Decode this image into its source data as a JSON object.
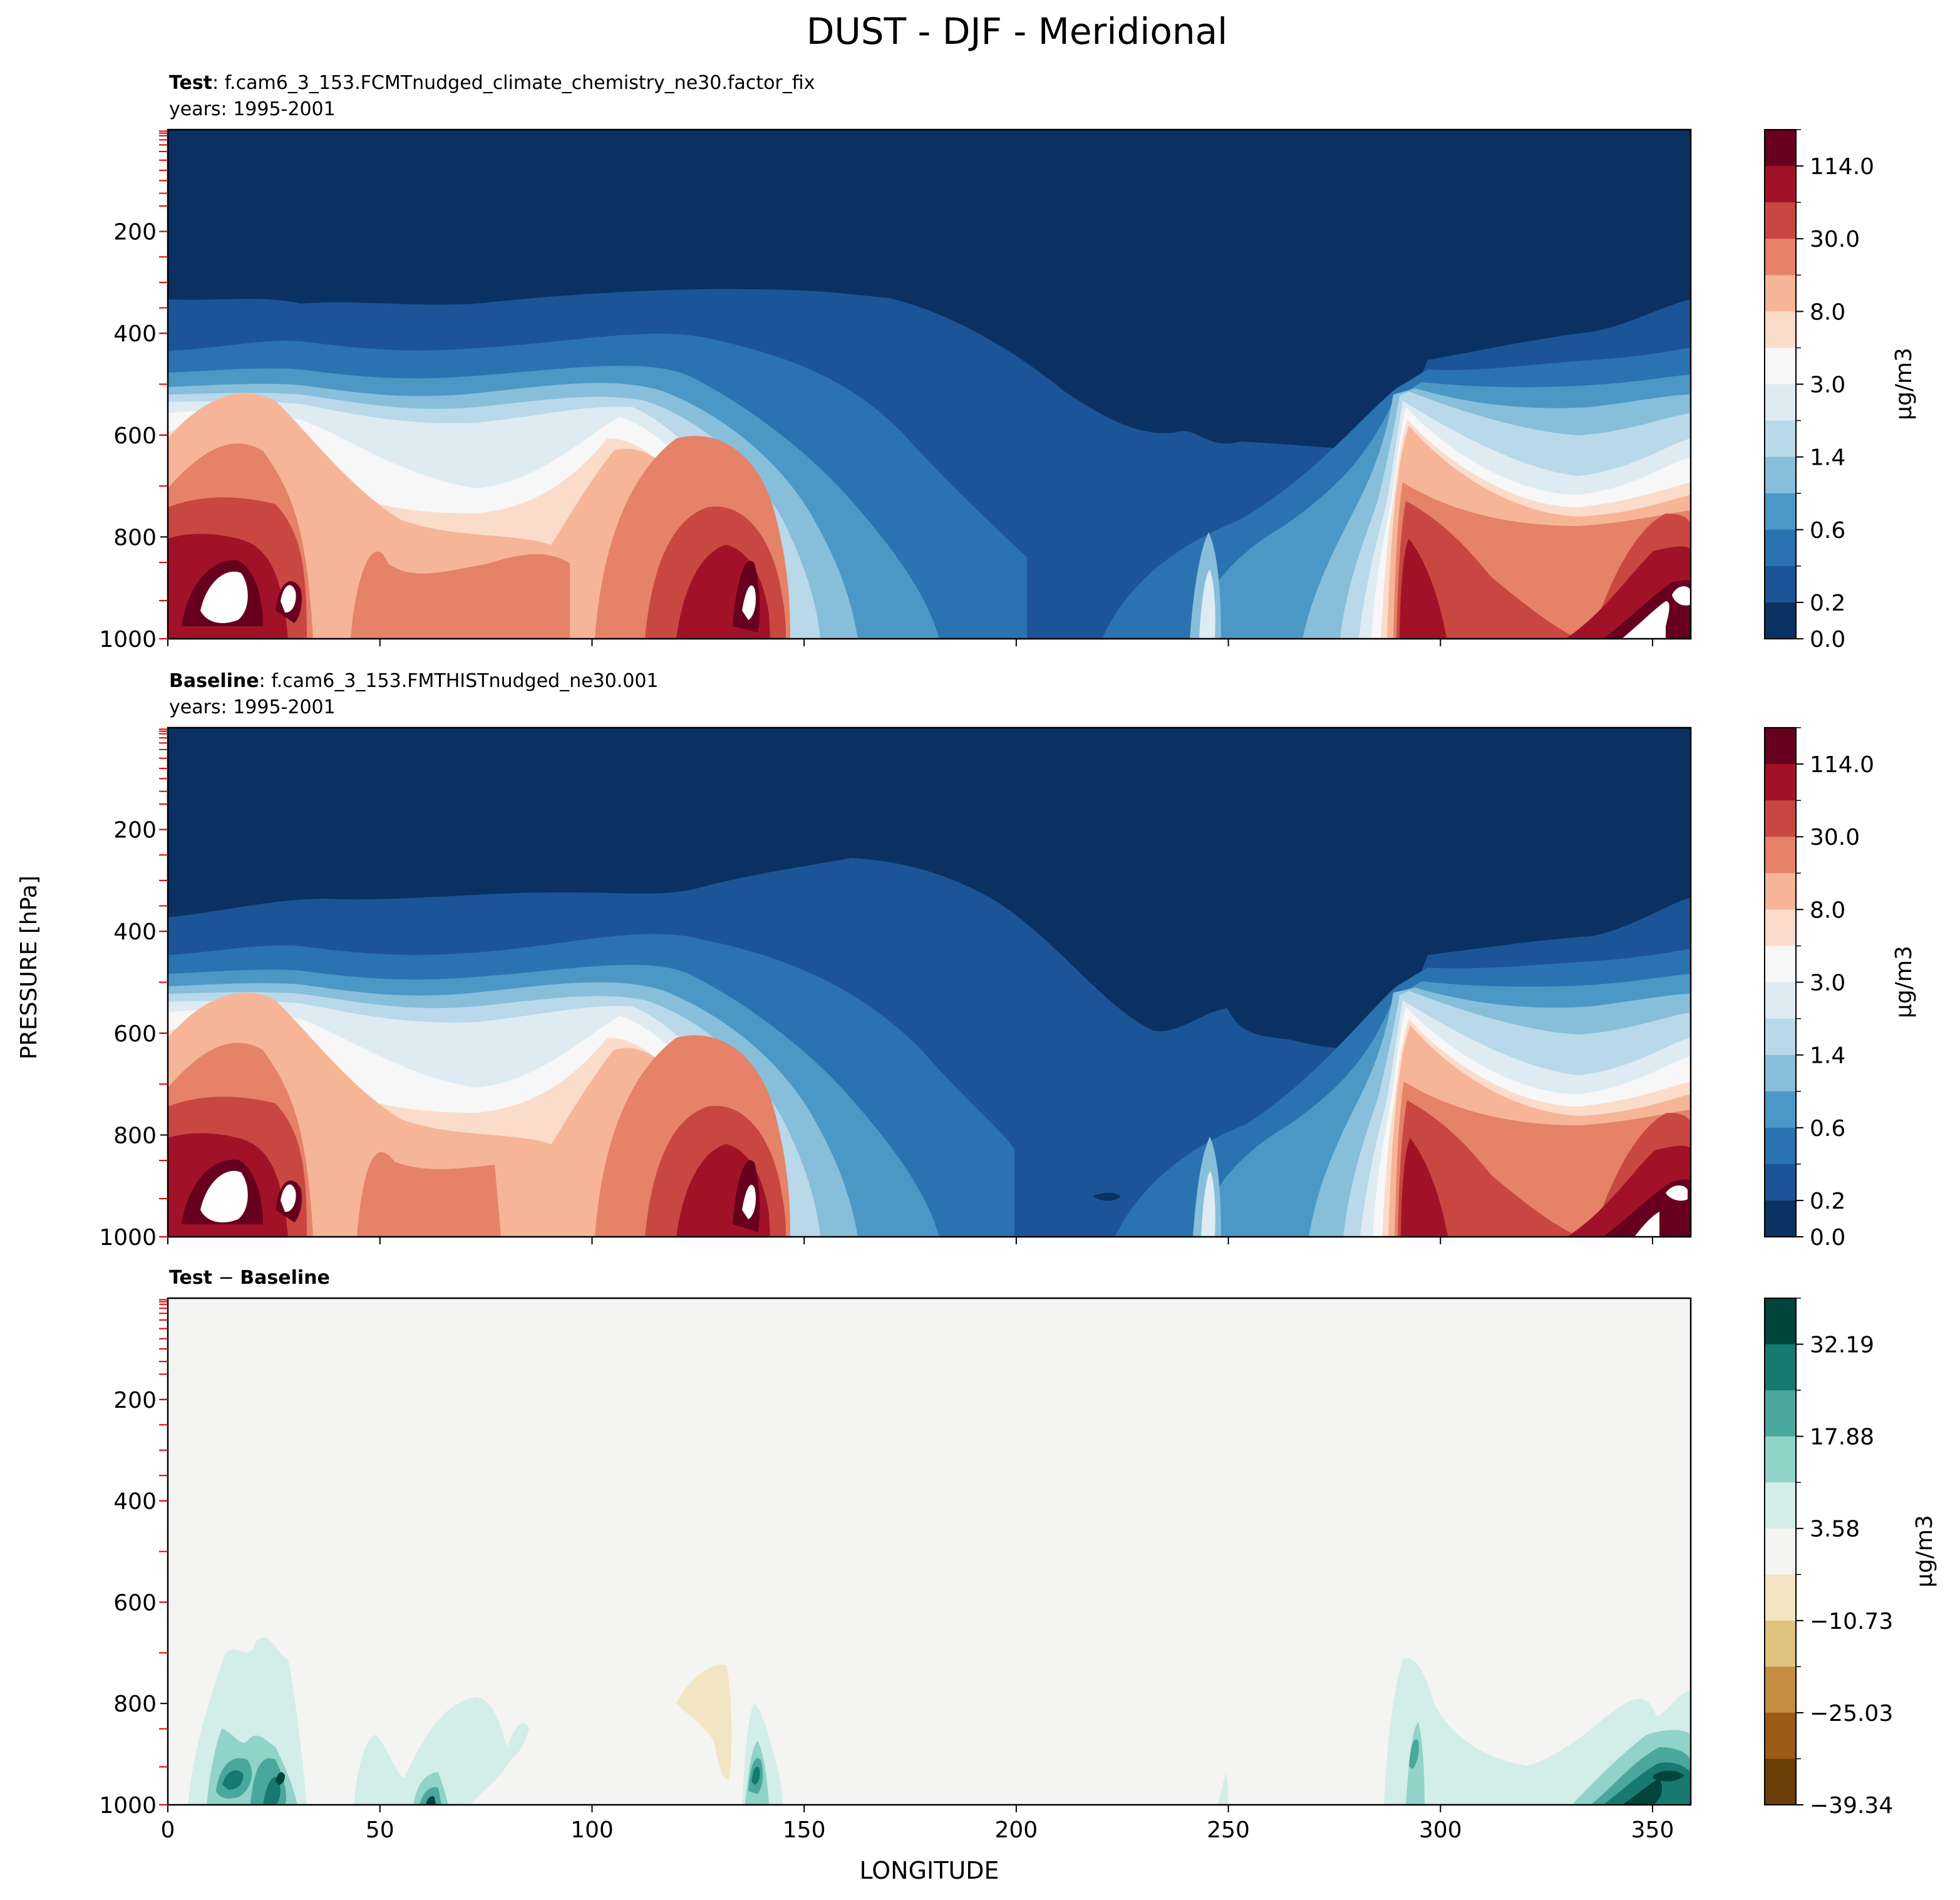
{
  "title": "DUST - DJF - Meridional",
  "ylabel": "PRESSURE [hPa]",
  "xlabel": "LONGITUDE",
  "x_ticks": [
    "0",
    "50",
    "100",
    "150",
    "200",
    "250",
    "300",
    "350"
  ],
  "y_ticks": [
    "200",
    "400",
    "600",
    "800",
    "1000"
  ],
  "chart_data": [
    {
      "type": "heatmap",
      "panel": "test",
      "label_bold": "Test",
      "label_rest": ": f.cam6_3_153.FCMTnudged_climate_chemistry_ne30.factor_fix",
      "years": "years: 1995-2001",
      "x_range": [
        0,
        359
      ],
      "y_range": [
        1000,
        0
      ],
      "colorbar_label": "μg/m3",
      "colorbar_ticks": [
        "114.0",
        "30.0",
        "8.0",
        "3.0",
        "1.4",
        "0.6",
        "0.2",
        "0.0"
      ],
      "colorbar_colors": [
        "#67001f",
        "#a11228",
        "#c94741",
        "#e58267",
        "#f6b596",
        "#fbdccb",
        "#f7f7f7",
        "#deebf2",
        "#b9d8ea",
        "#87beda",
        "#4b98c6",
        "#2b72b1",
        "#1c5597",
        "#0a3162"
      ]
    },
    {
      "type": "heatmap",
      "panel": "baseline",
      "label_bold": "Baseline",
      "label_rest": ": f.cam6_3_153.FMTHISTnudged_ne30.001",
      "years": "years: 1995-2001",
      "x_range": [
        0,
        359
      ],
      "y_range": [
        1000,
        0
      ],
      "colorbar_label": "μg/m3",
      "colorbar_ticks": [
        "114.0",
        "30.0",
        "8.0",
        "3.0",
        "1.4",
        "0.6",
        "0.2",
        "0.0"
      ],
      "colorbar_colors": [
        "#67001f",
        "#a11228",
        "#c94741",
        "#e58267",
        "#f6b596",
        "#fbdccb",
        "#f7f7f7",
        "#deebf2",
        "#b9d8ea",
        "#87beda",
        "#4b98c6",
        "#2b72b1",
        "#1c5597",
        "#0a3162"
      ]
    },
    {
      "type": "heatmap",
      "panel": "difference",
      "label_bold": "Test",
      "label_minus": " − ",
      "label_bold2": "Baseline",
      "x_range": [
        0,
        359
      ],
      "y_range": [
        1000,
        0
      ],
      "colorbar_label": "μg/m3",
      "colorbar_ticks": [
        "32.19",
        "17.88",
        "3.58",
        "−10.73",
        "−25.03",
        "−39.34"
      ],
      "colorbar_colors": [
        "#01443c",
        "#177a71",
        "#4aa79d",
        "#90d3c8",
        "#d3ede8",
        "#f4f4f2",
        "#f3e5c3",
        "#dfc27e",
        "#c48d3f",
        "#9c5b15",
        "#6b3d07"
      ]
    }
  ]
}
